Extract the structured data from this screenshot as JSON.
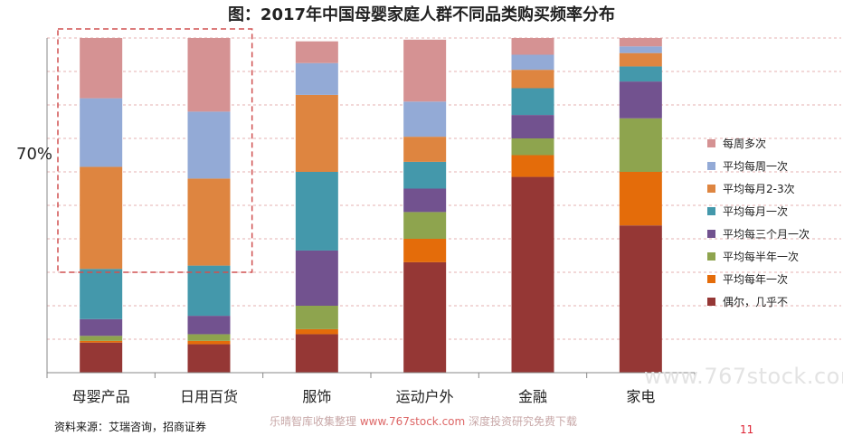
{
  "chart_data": {
    "type": "bar",
    "stacked": true,
    "normalized": true,
    "title": "图：2017年中国母婴家庭人群不同品类购买频率分布",
    "categories": [
      "母婴产品",
      "日用百货",
      "服饰",
      "运动户外",
      "金融",
      "家电"
    ],
    "ylim": [
      0,
      100
    ],
    "grid": true,
    "legend_position": "right",
    "series": [
      {
        "name": "偶尔，几乎不",
        "color": "#953735",
        "values": [
          9,
          8.5,
          11.5,
          33,
          58.5,
          44
        ]
      },
      {
        "name": "平均每年一次",
        "color": "#e46c0a",
        "values": [
          0.5,
          1,
          1.5,
          7,
          6.5,
          16
        ]
      },
      {
        "name": "平均每半年一次",
        "color": "#8ea44e",
        "values": [
          1.5,
          2,
          7,
          8,
          5,
          16
        ]
      },
      {
        "name": "平均每三个月一次",
        "color": "#72528f",
        "values": [
          5,
          5.5,
          16.5,
          7,
          7,
          11
        ]
      },
      {
        "name": "平均每月一次",
        "color": "#4498ab",
        "values": [
          15,
          15,
          23.5,
          8,
          8,
          4.5
        ]
      },
      {
        "name": "平均每月2-3次",
        "color": "#de8540",
        "values": [
          30.5,
          26,
          23,
          7.5,
          5.5,
          4
        ]
      },
      {
        "name": "平均每周一次",
        "color": "#93aad6",
        "values": [
          20.5,
          20,
          9.5,
          10.5,
          4.5,
          2
        ]
      },
      {
        "name": "每周多次",
        "color": "#d59293",
        "values": [
          18,
          22,
          6.5,
          18.5,
          5,
          2.5
        ]
      }
    ],
    "annotations": [
      {
        "text": "70%",
        "highlight_categories": [
          "母婴产品",
          "日用百货"
        ],
        "style": "dashed-box",
        "color": "#d05050"
      }
    ]
  },
  "source": "资料来源：艾瑞咨询，招商证券",
  "footer": {
    "prefix": "乐晴智库收集整理",
    "site": "www.767stock.com",
    "suffix": "深度投资研究免费下载"
  },
  "watermark": "www.767stock.com",
  "page_number": "11"
}
